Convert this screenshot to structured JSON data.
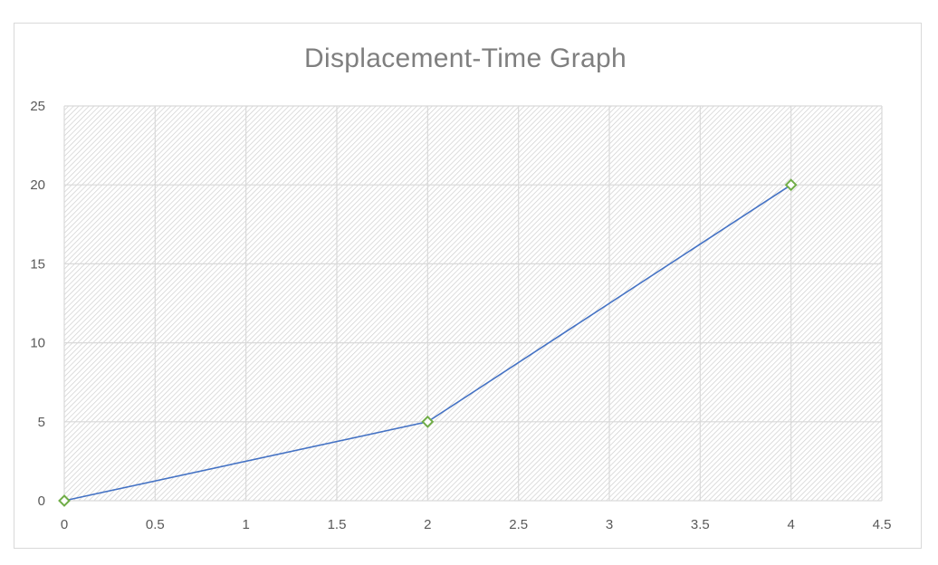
{
  "chart_data": {
    "type": "scatter",
    "title": "Displacement-Time Graph",
    "xlabel": "",
    "ylabel": "",
    "xlim": [
      0,
      4.5
    ],
    "ylim": [
      0,
      25
    ],
    "x_ticks": [
      "0",
      "0.5",
      "1",
      "1.5",
      "2",
      "2.5",
      "3",
      "3.5",
      "4",
      "4.5"
    ],
    "y_ticks": [
      "0",
      "5",
      "10",
      "15",
      "20",
      "25"
    ],
    "grid": true,
    "legend": "none",
    "series": [
      {
        "x": [
          0,
          2,
          4
        ],
        "y": [
          0,
          5,
          20
        ],
        "mode": "lines+markers",
        "marker": "diamond-open"
      }
    ],
    "colors": {
      "line": "#4472c4",
      "marker": "#70ad47",
      "grid": "#d9d9d9",
      "plot_hatch": "#d0d0d0",
      "title": "#7f7f7f",
      "tick_text": "#595959"
    }
  }
}
